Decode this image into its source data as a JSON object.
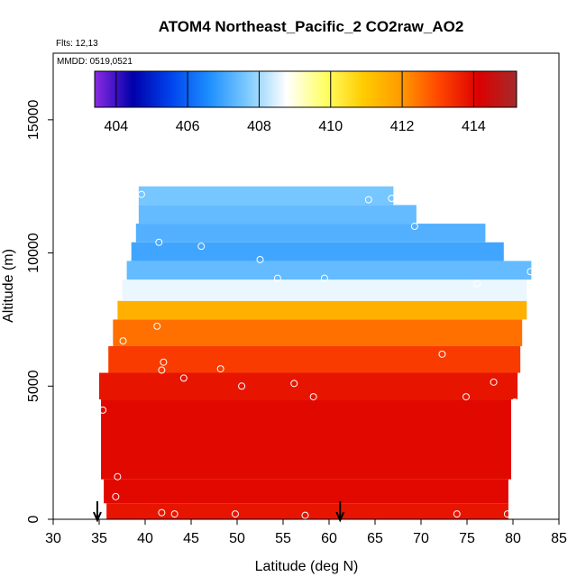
{
  "chart_data": {
    "type": "heatmap",
    "title": "ATOM4 Northeast_Pacific_2 CO2raw_AO2",
    "flights_label": "Flts: 12,13",
    "mmdd_label": "MMDD: 0519,0521",
    "xlabel": "Latitude (deg N)",
    "ylabel": "Altitude (m)",
    "xlim": [
      30,
      85
    ],
    "ylim": [
      0,
      17500
    ],
    "x_ticks": [
      "30",
      "35",
      "40",
      "45",
      "50",
      "55",
      "60",
      "65",
      "70",
      "75",
      "80",
      "85"
    ],
    "y_ticks": [
      "0",
      "5000",
      "10000",
      "15000"
    ],
    "colorbar": {
      "range": [
        403.4,
        415.2
      ],
      "tick_labels": [
        "404",
        "406",
        "408",
        "410",
        "412",
        "414"
      ],
      "tick_values": [
        404,
        406,
        408,
        410,
        412,
        414
      ],
      "colors": [
        "#8a2be2",
        "#0000aa",
        "#0044ee",
        "#1e90ff",
        "#7ecbff",
        "#ffffff",
        "#ffff66",
        "#ffcc00",
        "#ff9900",
        "#ff4400",
        "#dd0000",
        "#a52a2a"
      ]
    },
    "layers": [
      {
        "alt": [
          0,
          600
        ],
        "lat": [
          35.8,
          79.5
        ],
        "value": 413.8
      },
      {
        "alt": [
          600,
          1500
        ],
        "lat": [
          35.5,
          79.5
        ],
        "value": 414.0
      },
      {
        "alt": [
          1500,
          4500
        ],
        "lat": [
          35.2,
          79.8
        ],
        "value": 414.0
      },
      {
        "alt": [
          4500,
          5500
        ],
        "lat": [
          35.0,
          80.5
        ],
        "value": 413.8
      },
      {
        "alt": [
          5500,
          6500
        ],
        "lat": [
          36.0,
          80.8
        ],
        "value": 413.2
      },
      {
        "alt": [
          6500,
          7500
        ],
        "lat": [
          36.5,
          81.0
        ],
        "value": 412.5
      },
      {
        "alt": [
          7500,
          8200
        ],
        "lat": [
          37.0,
          81.5
        ],
        "value": 411.5
      },
      {
        "alt": [
          8200,
          9000
        ],
        "lat": [
          37.5,
          81.5
        ],
        "value": 408.6
      },
      {
        "alt": [
          9000,
          9700
        ],
        "lat": [
          38.0,
          82.0
        ],
        "value": 407.4
      },
      {
        "alt": [
          9700,
          10400
        ],
        "lat": [
          38.5,
          79.0
        ],
        "value": 407.0
      },
      {
        "alt": [
          10400,
          11100
        ],
        "lat": [
          39.0,
          77.0
        ],
        "value": 407.2
      },
      {
        "alt": [
          11100,
          11800
        ],
        "lat": [
          39.3,
          69.5
        ],
        "value": 407.4
      },
      {
        "alt": [
          11800,
          12500
        ],
        "lat": [
          39.3,
          67.0
        ],
        "value": 407.6
      }
    ],
    "samples": [
      {
        "lat": 39.6,
        "alt": 12200
      },
      {
        "lat": 64.3,
        "alt": 12000
      },
      {
        "lat": 66.8,
        "alt": 12050
      },
      {
        "lat": 69.3,
        "alt": 11000
      },
      {
        "lat": 41.5,
        "alt": 10400
      },
      {
        "lat": 46.1,
        "alt": 10250
      },
      {
        "lat": 52.5,
        "alt": 9750
      },
      {
        "lat": 54.4,
        "alt": 9050
      },
      {
        "lat": 59.5,
        "alt": 9050
      },
      {
        "lat": 76.1,
        "alt": 8850
      },
      {
        "lat": 81.9,
        "alt": 9300
      },
      {
        "lat": 41.3,
        "alt": 7250
      },
      {
        "lat": 37.6,
        "alt": 6700
      },
      {
        "lat": 72.3,
        "alt": 6200
      },
      {
        "lat": 42.0,
        "alt": 5900
      },
      {
        "lat": 41.8,
        "alt": 5600
      },
      {
        "lat": 48.2,
        "alt": 5650
      },
      {
        "lat": 44.2,
        "alt": 5300
      },
      {
        "lat": 50.5,
        "alt": 5000
      },
      {
        "lat": 56.2,
        "alt": 5100
      },
      {
        "lat": 58.3,
        "alt": 4600
      },
      {
        "lat": 74.9,
        "alt": 4600
      },
      {
        "lat": 77.9,
        "alt": 5150
      },
      {
        "lat": 80.2,
        "alt": 4400
      },
      {
        "lat": 35.4,
        "alt": 4100
      },
      {
        "lat": 37.0,
        "alt": 1600
      },
      {
        "lat": 36.8,
        "alt": 850
      },
      {
        "lat": 41.8,
        "alt": 250
      },
      {
        "lat": 43.2,
        "alt": 200
      },
      {
        "lat": 49.8,
        "alt": 200
      },
      {
        "lat": 57.4,
        "alt": 150
      },
      {
        "lat": 73.9,
        "alt": 200
      },
      {
        "lat": 79.4,
        "alt": 200
      }
    ],
    "arrows": [
      {
        "lat": 34.8
      },
      {
        "lat": 61.2
      }
    ]
  }
}
